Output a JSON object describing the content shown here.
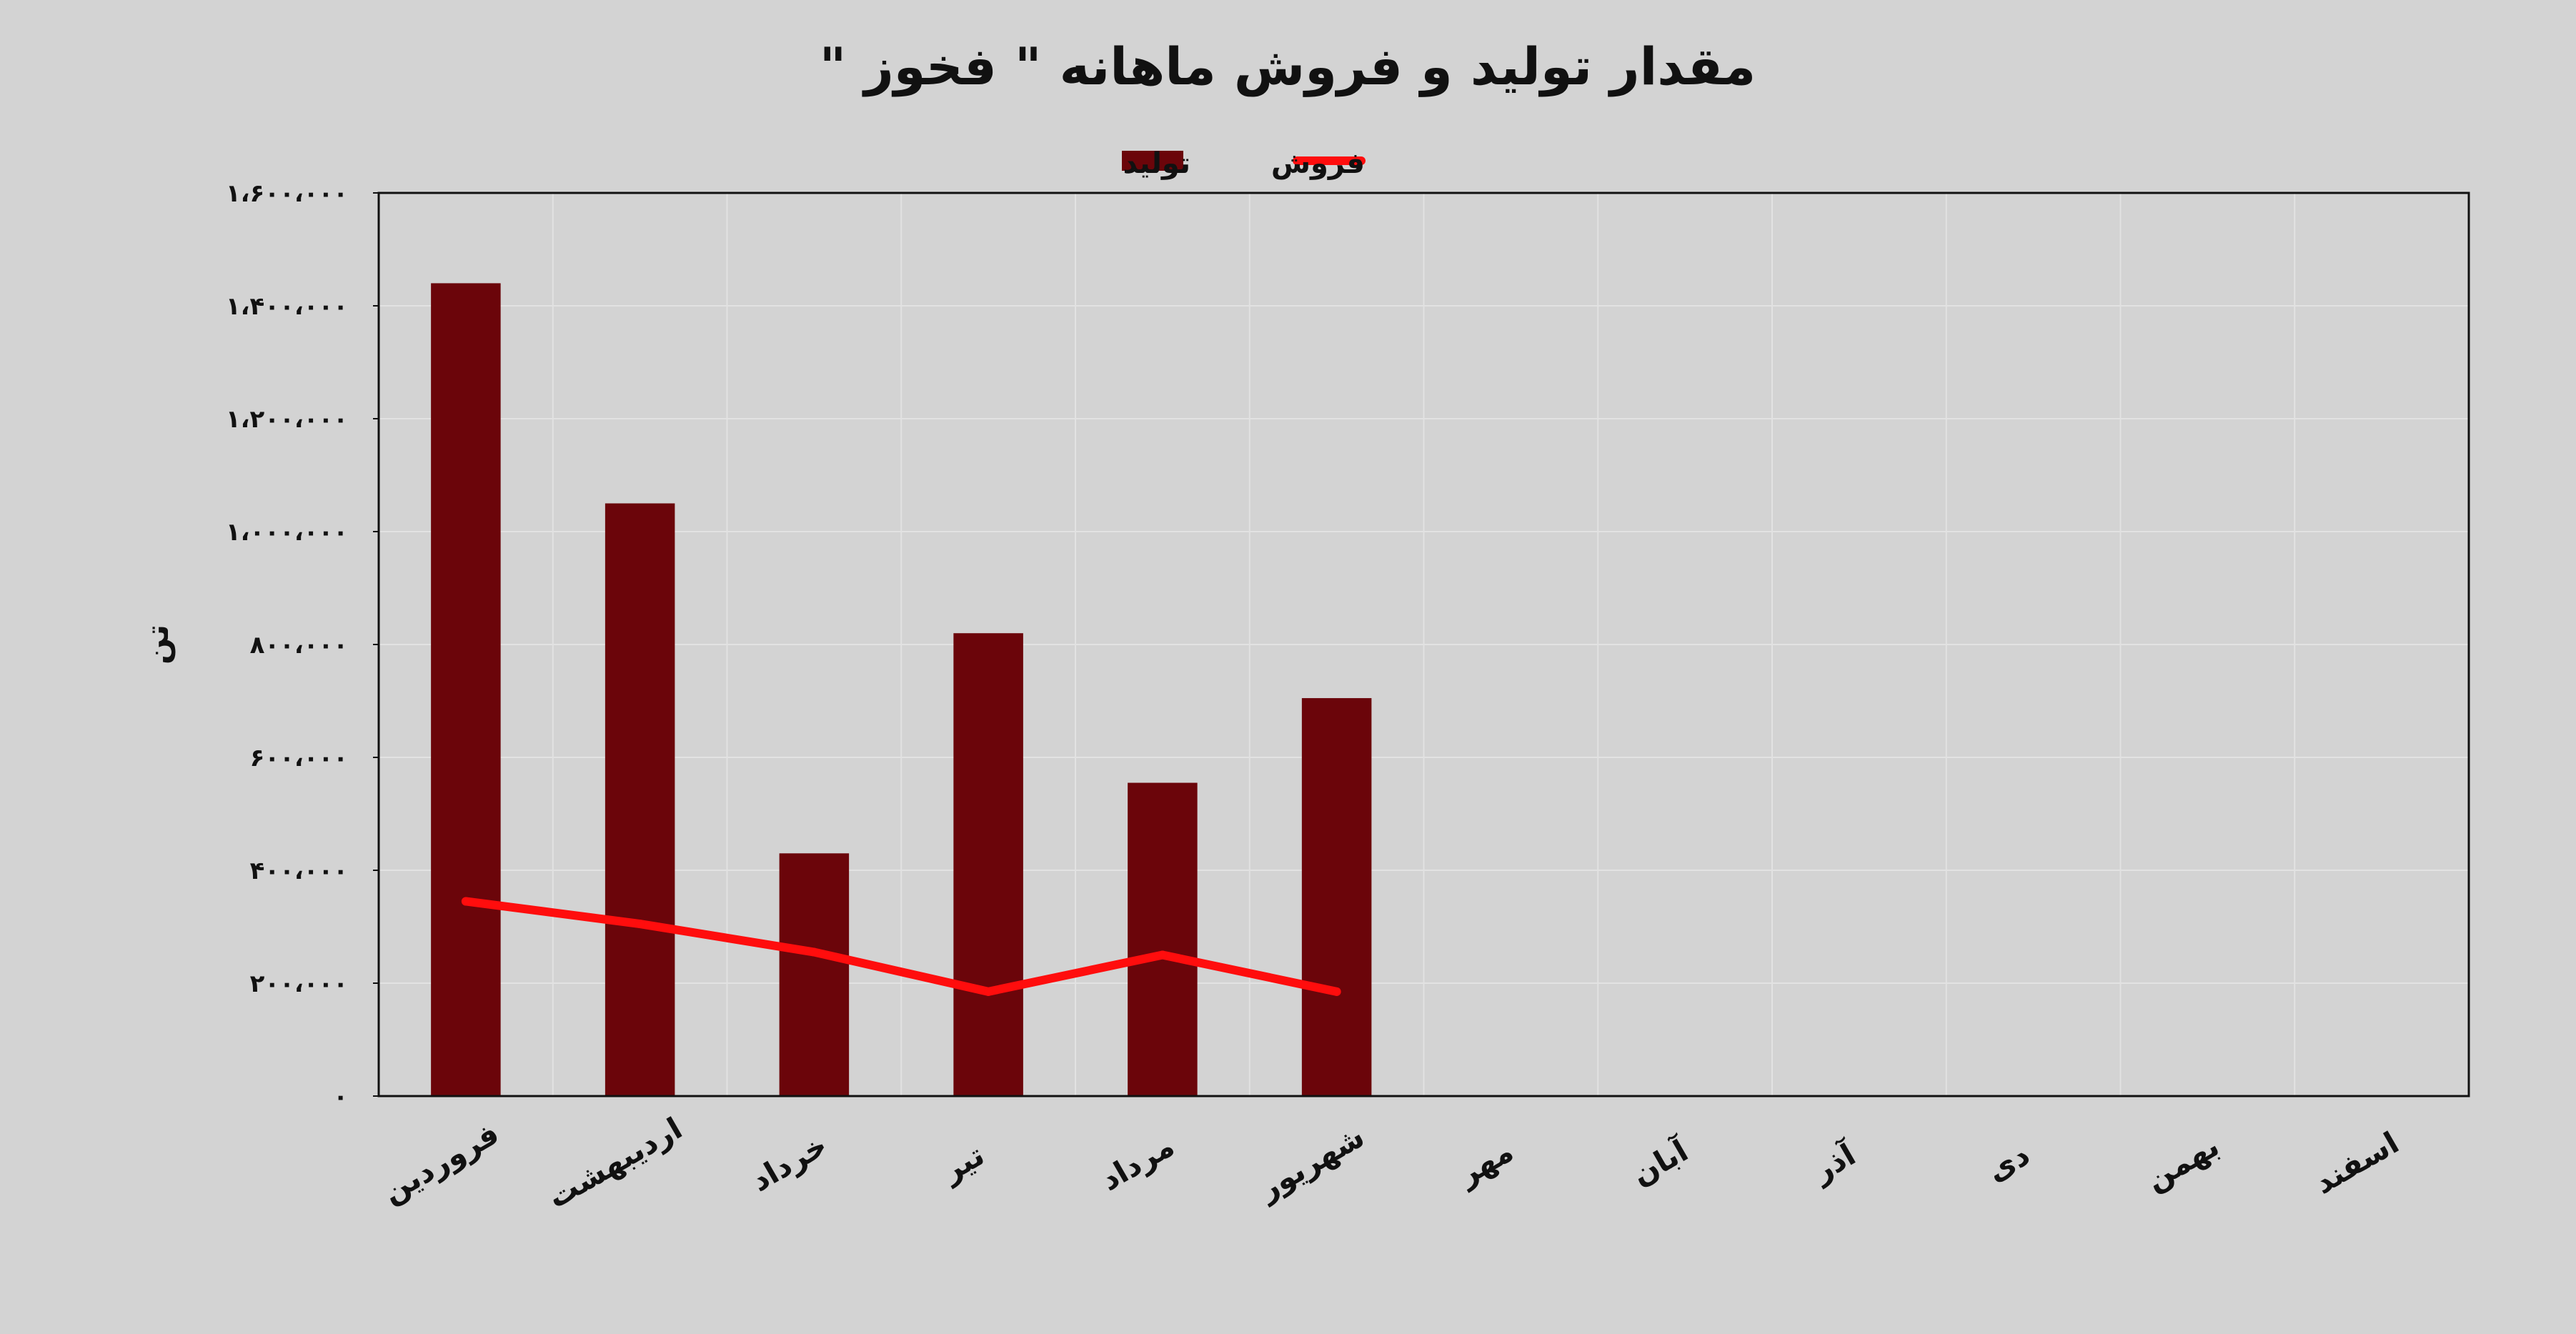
{
  "chart_data": {
    "type": "bar",
    "title": "مقدار تولید و فروش ماهانه \" فخوز \"",
    "xlabel": "",
    "ylabel": "تن",
    "ylim": [
      0,
      1600000
    ],
    "yticks": [
      0,
      200000,
      400000,
      600000,
      800000,
      1000000,
      1200000,
      1400000,
      1600000
    ],
    "ytick_labels": [
      "۰",
      "۲۰۰،۰۰۰",
      "۴۰۰،۰۰۰",
      "۶۰۰،۰۰۰",
      "۸۰۰،۰۰۰",
      "۱،۰۰۰،۰۰۰",
      "۱،۲۰۰،۰۰۰",
      "۱،۴۰۰،۰۰۰",
      "۱،۶۰۰،۰۰۰"
    ],
    "categories": [
      "فروردین",
      "اردیبهشت",
      "خرداد",
      "تیر",
      "مرداد",
      "شهریور",
      "مهر",
      "آبان",
      "آذر",
      "دی",
      "بهمن",
      "اسفند"
    ],
    "grid": true,
    "legend_position": "top-center",
    "series": [
      {
        "name": "تولید",
        "type": "bar",
        "color": "#6b050a",
        "values": [
          1440000,
          1050000,
          430000,
          820000,
          555000,
          705000,
          null,
          null,
          null,
          null,
          null,
          null
        ]
      },
      {
        "name": "فروش",
        "type": "line",
        "color": "#ff0d0d",
        "values": [
          345000,
          305000,
          255000,
          185000,
          250000,
          185000,
          null,
          null,
          null,
          null,
          null,
          null
        ]
      }
    ]
  }
}
